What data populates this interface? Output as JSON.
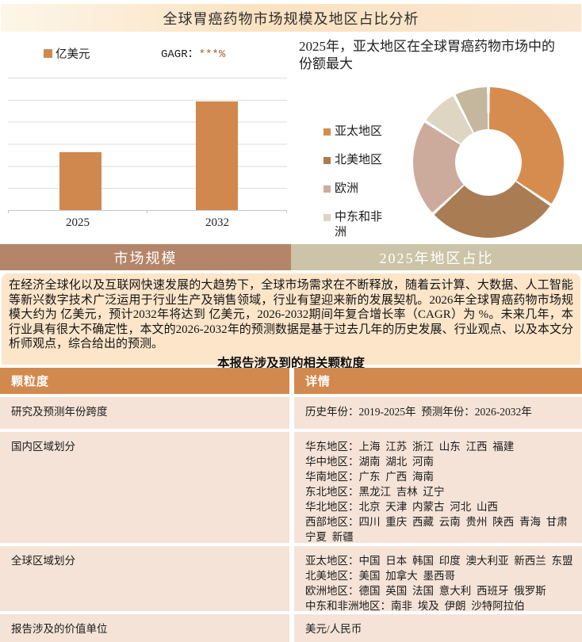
{
  "page_title": "全球胃癌药物市场规模及地区占比分析",
  "chart_data": [
    {
      "type": "bar",
      "panel": "left",
      "unit_legend": "亿美元",
      "cagr_label_prefix": "GAGR：",
      "cagr_label_value": "***%",
      "categories": [
        "2025",
        "2032"
      ],
      "values_pct_of_axis_max": [
        44,
        82
      ],
      "y_tick_labels": "hidden",
      "bar_color": "#d0884e",
      "grid": true,
      "gridline_color": "#dedede"
    },
    {
      "type": "pie",
      "subtype": "donut",
      "panel": "right",
      "title": "2025年，亚太地区在全球胃癌药物市场中的份额最大",
      "legend_position": "left",
      "slices": [
        {
          "label": "亚太地区",
          "pct": 34.5,
          "color": "#d68c4f"
        },
        {
          "label": "北美地区",
          "pct": 28.6,
          "color": "#a97c53"
        },
        {
          "label": "欧洲",
          "pct": 21.1,
          "color": "#ccab9c"
        },
        {
          "label": "中东和非洲",
          "pct": 8.3,
          "color": "#ded5c2"
        },
        {
          "label": "",
          "pct": 7.5,
          "color": "#c5b79e"
        }
      ]
    }
  ],
  "tabs": [
    {
      "label": "市场规模",
      "bg": "#b48569"
    },
    {
      "label": "2025年地区占比",
      "bg": "#ccc4a8"
    }
  ],
  "summary": {
    "paragraph": "在经济全球化以及互联网快速发展的大趋势下，全球市场需求在不断释放，随着云计算、大数据、人工智能等新兴数字技术广泛运用于行业生产及销售领域，行业有望迎来新的发展契机。2026年全球胃癌药物市场规模大约为 亿美元，预计2032年将达到 亿美元，2026-2032期间年复合增长率（CAGR）为 %。未来几年，本行业具有很大不确定性，本文的2026-2032年的预测数据是基于过去几年的历史发展、行业观点、以及本文分析师观点，综合给出的预测。",
    "table_title": "本报告涉及到的相关颗粒度"
  },
  "table": {
    "headers": [
      "颗粒度",
      "详情"
    ],
    "rows": [
      {
        "label": "研究及预测年份跨度",
        "details": [
          "历史年份：2019-2025年  预测年份：2026-2032年"
        ]
      },
      {
        "label": "国内区域划分",
        "details": [
          "华东地区：上海  江苏  浙江  山东  江西  福建",
          "华中地区：湖南  湖北  河南",
          "华南地区：广东  广西  海南",
          "东北地区：黑龙江  吉林  辽宁",
          "华北地区：北京  天津  内蒙古  河北  山西",
          "西部地区：四川  重庆  西藏  云南  贵州  陕西  青海  甘肃  宁夏  新疆"
        ]
      },
      {
        "label": "全球区域划分",
        "details": [
          "亚太地区：中国  日本  韩国  印度  澳大利亚  新西兰  东盟",
          "北美地区：美国  加拿大  墨西哥",
          "欧洲地区：德国  英国  法国  意大利  西班牙  俄罗斯",
          "中东和非洲地区：南非  埃及  伊朗  沙特阿拉伯"
        ]
      },
      {
        "label": "报告涉及的价值单位",
        "details": [
          "美元/人民币"
        ]
      }
    ]
  },
  "colors": {
    "accent_orange": "#d2894e",
    "bar_orange": "#d0884e",
    "cagr_value_color": "#a55f2d",
    "tab_left_bg": "#b48569",
    "tab_right_bg": "#ccc4a8",
    "summary_bg": "#fce5c9",
    "table_row_bg": "#f5e3d7",
    "titlebar_gradient_mid": "#fbe2c0"
  }
}
